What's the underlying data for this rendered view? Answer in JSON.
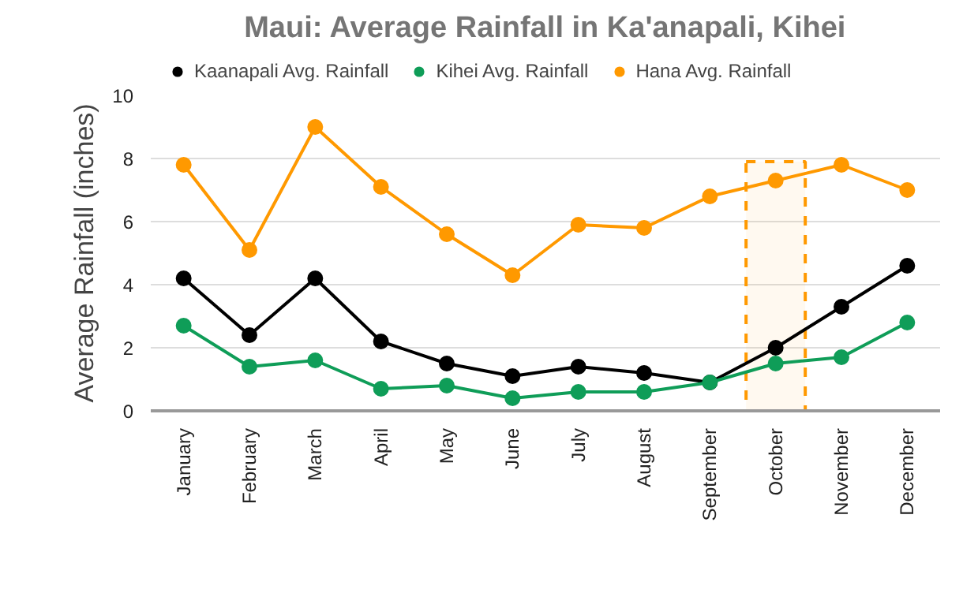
{
  "chart_data": {
    "type": "line",
    "title": "Maui: Average Rainfall in Ka'anapali, Kihei",
    "ylabel": "Average Rainfall (inches)",
    "categories": [
      "January",
      "February",
      "March",
      "April",
      "May",
      "June",
      "July",
      "August",
      "September",
      "October",
      "November",
      "December"
    ],
    "series": [
      {
        "name": "Kaanapali Avg. Rainfall",
        "color": "#000000",
        "values": [
          4.2,
          2.4,
          4.2,
          2.2,
          1.5,
          1.1,
          1.4,
          1.2,
          0.9,
          2.0,
          3.3,
          4.6
        ]
      },
      {
        "name": "Kihei Avg. Rainfall",
        "color": "#0f9d58",
        "values": [
          2.7,
          1.4,
          1.6,
          0.7,
          0.8,
          0.4,
          0.6,
          0.6,
          0.9,
          1.5,
          1.7,
          2.8
        ]
      },
      {
        "name": "Hana Avg. Rainfall",
        "color": "#ff9900",
        "values": [
          7.8,
          5.1,
          9.0,
          7.1,
          5.6,
          4.3,
          5.9,
          5.8,
          6.8,
          7.3,
          7.8,
          7.0
        ]
      }
    ],
    "ylim": [
      0,
      10
    ],
    "yticks": [
      0,
      2,
      4,
      6,
      8,
      10
    ],
    "grid": "y",
    "legend": "top",
    "marker": "circle",
    "line_style": "solid",
    "bands": [
      {
        "axis": "x",
        "from": "October",
        "to": "October",
        "color": "#ff9900"
      }
    ]
  }
}
